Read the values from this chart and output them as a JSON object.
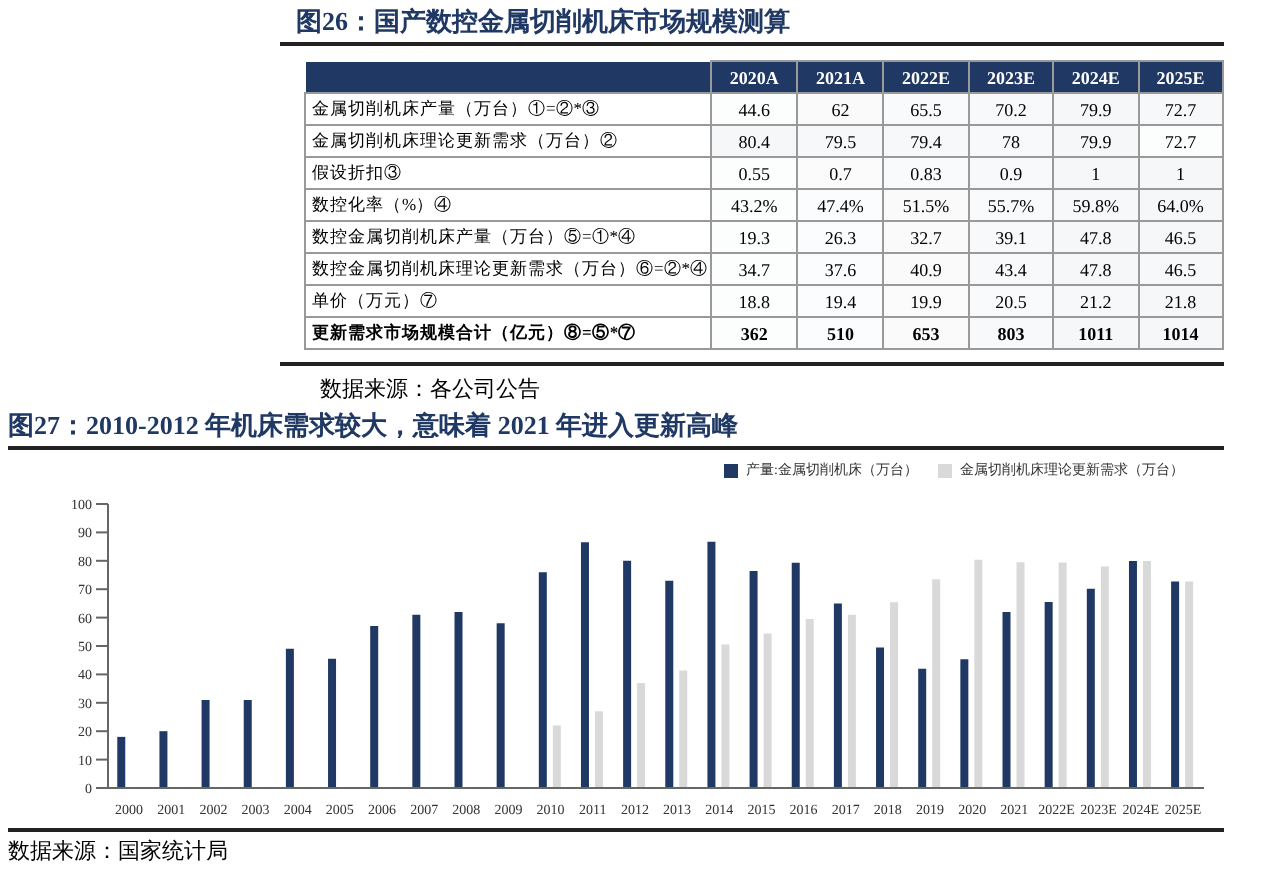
{
  "chart_data": [
    {
      "type": "heatmap",
      "title": "图26：国产数控金属切削机床市场规模测算",
      "categories": [
        "2020A",
        "2021A",
        "2022E",
        "2023E",
        "2024E",
        "2025E"
      ],
      "y_categories": [
        "金属切削机床产量（万台）①=②*③",
        "金属切削机床理论更新需求（万台）②",
        "假设折扣③",
        "数控化率（%）④",
        "数控金属切削机床产量（万台）⑤=①*④",
        "数控金属切削机床理论更新需求（万台）⑥=②*④",
        "单价（万元）⑦",
        "更新需求市场规模合计（亿元）⑧=⑤*⑦"
      ],
      "cells": [
        [
          44.6,
          62,
          65.5,
          70.2,
          79.9,
          72.7
        ],
        [
          80.4,
          79.5,
          79.4,
          78,
          79.9,
          72.7
        ],
        [
          0.55,
          0.7,
          0.83,
          0.9,
          1,
          1
        ],
        [
          43.2,
          47.4,
          51.5,
          55.7,
          59.8,
          64.0
        ],
        [
          19.3,
          26.3,
          32.7,
          39.1,
          47.8,
          46.5
        ],
        [
          34.7,
          37.6,
          40.9,
          43.4,
          47.8,
          46.5
        ],
        [
          18.8,
          19.4,
          19.9,
          20.5,
          21.2,
          21.8
        ],
        [
          362,
          510,
          653,
          803,
          1011,
          1014
        ]
      ],
      "cell_labels": [
        [
          "44.6",
          "62",
          "65.5",
          "70.2",
          "79.9",
          "72.7"
        ],
        [
          "80.4",
          "79.5",
          "79.4",
          "78",
          "79.9",
          "72.7"
        ],
        [
          "0.55",
          "0.7",
          "0.83",
          "0.9",
          "1",
          "1"
        ],
        [
          "43.2%",
          "47.4%",
          "51.5%",
          "55.7%",
          "59.8%",
          "64.0%"
        ],
        [
          "19.3",
          "26.3",
          "32.7",
          "39.1",
          "47.8",
          "46.5"
        ],
        [
          "34.7",
          "37.6",
          "40.9",
          "43.4",
          "47.8",
          "46.5"
        ],
        [
          "18.8",
          "19.4",
          "19.9",
          "20.5",
          "21.2",
          "21.8"
        ],
        [
          "362",
          "510",
          "653",
          "803",
          "1011",
          "1014"
        ]
      ],
      "data_labels": true,
      "annotations": [
        "数据来源：各公司公告"
      ]
    },
    {
      "type": "bar",
      "title": "图27：2010-2012 年机床需求较大，意味着 2021 年进入更新高峰",
      "categories": [
        "2000",
        "2001",
        "2002",
        "2003",
        "2004",
        "2005",
        "2006",
        "2007",
        "2008",
        "2009",
        "2010",
        "2011",
        "2012",
        "2013",
        "2014",
        "2015",
        "2016",
        "2017",
        "2018",
        "2019",
        "2020",
        "2021",
        "2022E",
        "2023E",
        "2024E",
        "2025E"
      ],
      "series": [
        {
          "name": "产量:金属切削机床（万台）",
          "color": "#1f3864",
          "values": [
            18,
            20,
            31,
            31,
            49,
            45.5,
            57,
            61,
            62,
            58,
            76,
            86.5,
            80,
            73,
            86.7,
            76.4,
            79.3,
            65,
            49.5,
            42,
            45.3,
            62,
            65.5,
            70.2,
            79.9,
            72.7
          ]
        },
        {
          "name": "金属切削机床理论更新需求（万台）",
          "color": "#d9d9d9",
          "values": [
            null,
            null,
            null,
            null,
            null,
            null,
            null,
            null,
            null,
            null,
            22,
            27,
            37,
            41.4,
            50.5,
            54.4,
            59.5,
            61,
            65.4,
            73.5,
            80.4,
            79.5,
            79.4,
            78,
            79.9,
            72.7
          ]
        }
      ],
      "ylim": [
        0,
        100
      ],
      "yticks": [
        0,
        10,
        20,
        30,
        40,
        50,
        60,
        70,
        80,
        90,
        100
      ],
      "grid": false,
      "legend": "top right",
      "annotations": [
        "数据来源：国家统计局"
      ]
    }
  ]
}
